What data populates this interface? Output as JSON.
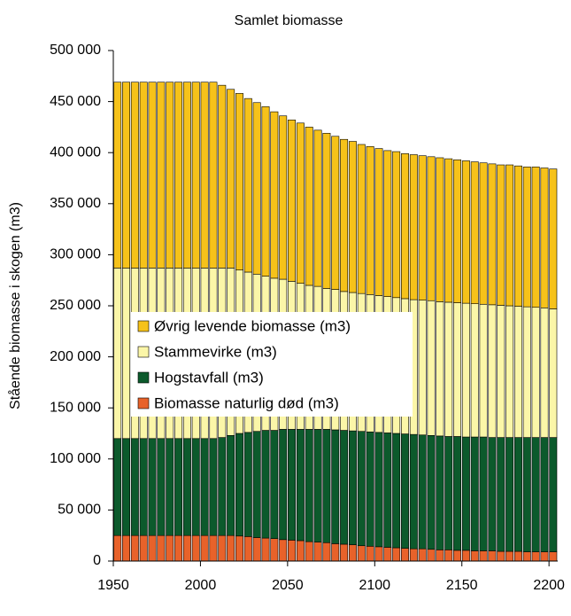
{
  "chart_data": {
    "type": "stacked_bar",
    "title": "Samlet biomasse",
    "y_label": "Stående biomasse i skogen (m3)",
    "x": [
      1950,
      1955,
      1960,
      1965,
      1970,
      1975,
      1980,
      1985,
      1990,
      1995,
      2000,
      2005,
      2010,
      2015,
      2020,
      2025,
      2030,
      2035,
      2040,
      2045,
      2050,
      2055,
      2060,
      2065,
      2070,
      2075,
      2080,
      2085,
      2090,
      2095,
      2100,
      2105,
      2110,
      2115,
      2120,
      2125,
      2130,
      2135,
      2140,
      2145,
      2150,
      2155,
      2160,
      2165,
      2170,
      2175,
      2180,
      2185,
      2190,
      2195,
      2200
    ],
    "xlim": [
      1950,
      2205
    ],
    "xticks": [
      1950,
      2000,
      2050,
      2100,
      2150,
      2200
    ],
    "ylim": [
      0,
      500000
    ],
    "yticks": [
      0,
      {
        "value": 50000,
        "label": "50 000"
      },
      {
        "value": 100000,
        "label": "100 000"
      },
      {
        "value": 150000,
        "label": "150 000"
      },
      {
        "value": 200000,
        "label": "200 000"
      },
      {
        "value": 250000,
        "label": "250 000"
      },
      {
        "value": 300000,
        "label": "300 000"
      },
      {
        "value": 350000,
        "label": "350 000"
      },
      {
        "value": 400000,
        "label": "400 000"
      },
      {
        "value": 450000,
        "label": "450 000"
      },
      {
        "value": 500000,
        "label": "500 000"
      }
    ],
    "grid": false,
    "legend": "center-left",
    "series": [
      {
        "name": "Biomasse naturlig død  (m3)",
        "color": "#e8622a",
        "values": [
          25000,
          25000,
          25000,
          25000,
          25000,
          25000,
          25000,
          25000,
          25000,
          25000,
          25000,
          25000,
          25000,
          25000,
          24500,
          24000,
          23000,
          22500,
          22000,
          21000,
          20500,
          20000,
          19000,
          18500,
          18000,
          17000,
          16500,
          16000,
          15000,
          14500,
          14000,
          13500,
          13000,
          12500,
          12000,
          12000,
          11500,
          11000,
          11000,
          10500,
          10500,
          10000,
          10000,
          10000,
          9500,
          9500,
          9500,
          9000,
          9000,
          9000,
          9000
        ]
      },
      {
        "name": "Hogstavfall (m3)",
        "color": "#0c5a2c",
        "values": [
          95000,
          95000,
          95000,
          95000,
          95000,
          95000,
          95000,
          95000,
          95000,
          95000,
          95000,
          95000,
          96000,
          98000,
          100500,
          102000,
          104000,
          105500,
          106000,
          108000,
          108500,
          109000,
          110000,
          110500,
          111000,
          111500,
          111500,
          111500,
          112000,
          112000,
          112000,
          112000,
          112000,
          112000,
          112000,
          111500,
          111500,
          111500,
          111000,
          111500,
          111000,
          111500,
          111500,
          111000,
          111500,
          111500,
          111500,
          112000,
          112000,
          112000,
          112000
        ]
      },
      {
        "name": "Stammevirke (m3)",
        "color": "#fbf6a8",
        "values": [
          167000,
          167000,
          167000,
          167000,
          167000,
          167000,
          167000,
          167000,
          167000,
          167000,
          167000,
          167000,
          166000,
          164000,
          160000,
          157000,
          154000,
          151000,
          149000,
          147000,
          145000,
          143000,
          141000,
          140000,
          138000,
          137500,
          136000,
          135500,
          135000,
          134500,
          134000,
          133500,
          133000,
          132500,
          132000,
          132000,
          132000,
          131500,
          131500,
          131000,
          131000,
          130500,
          130000,
          130000,
          129500,
          129000,
          128500,
          128000,
          127500,
          127000,
          126000
        ]
      },
      {
        "name": "Øvrig levende biomasse (m3)",
        "color": "#f6c21a",
        "values": [
          182000,
          182000,
          182000,
          182000,
          182000,
          182000,
          182000,
          182000,
          182000,
          182000,
          182000,
          182000,
          179000,
          175000,
          173000,
          170000,
          168000,
          166000,
          163000,
          160000,
          158000,
          157000,
          155000,
          153000,
          152000,
          150000,
          149000,
          148000,
          146000,
          145000,
          144000,
          143000,
          143000,
          142000,
          142000,
          141500,
          141000,
          141000,
          140500,
          140000,
          139500,
          139000,
          138500,
          138000,
          137500,
          138000,
          137500,
          137000,
          137500,
          137000,
          137000
        ]
      }
    ]
  }
}
